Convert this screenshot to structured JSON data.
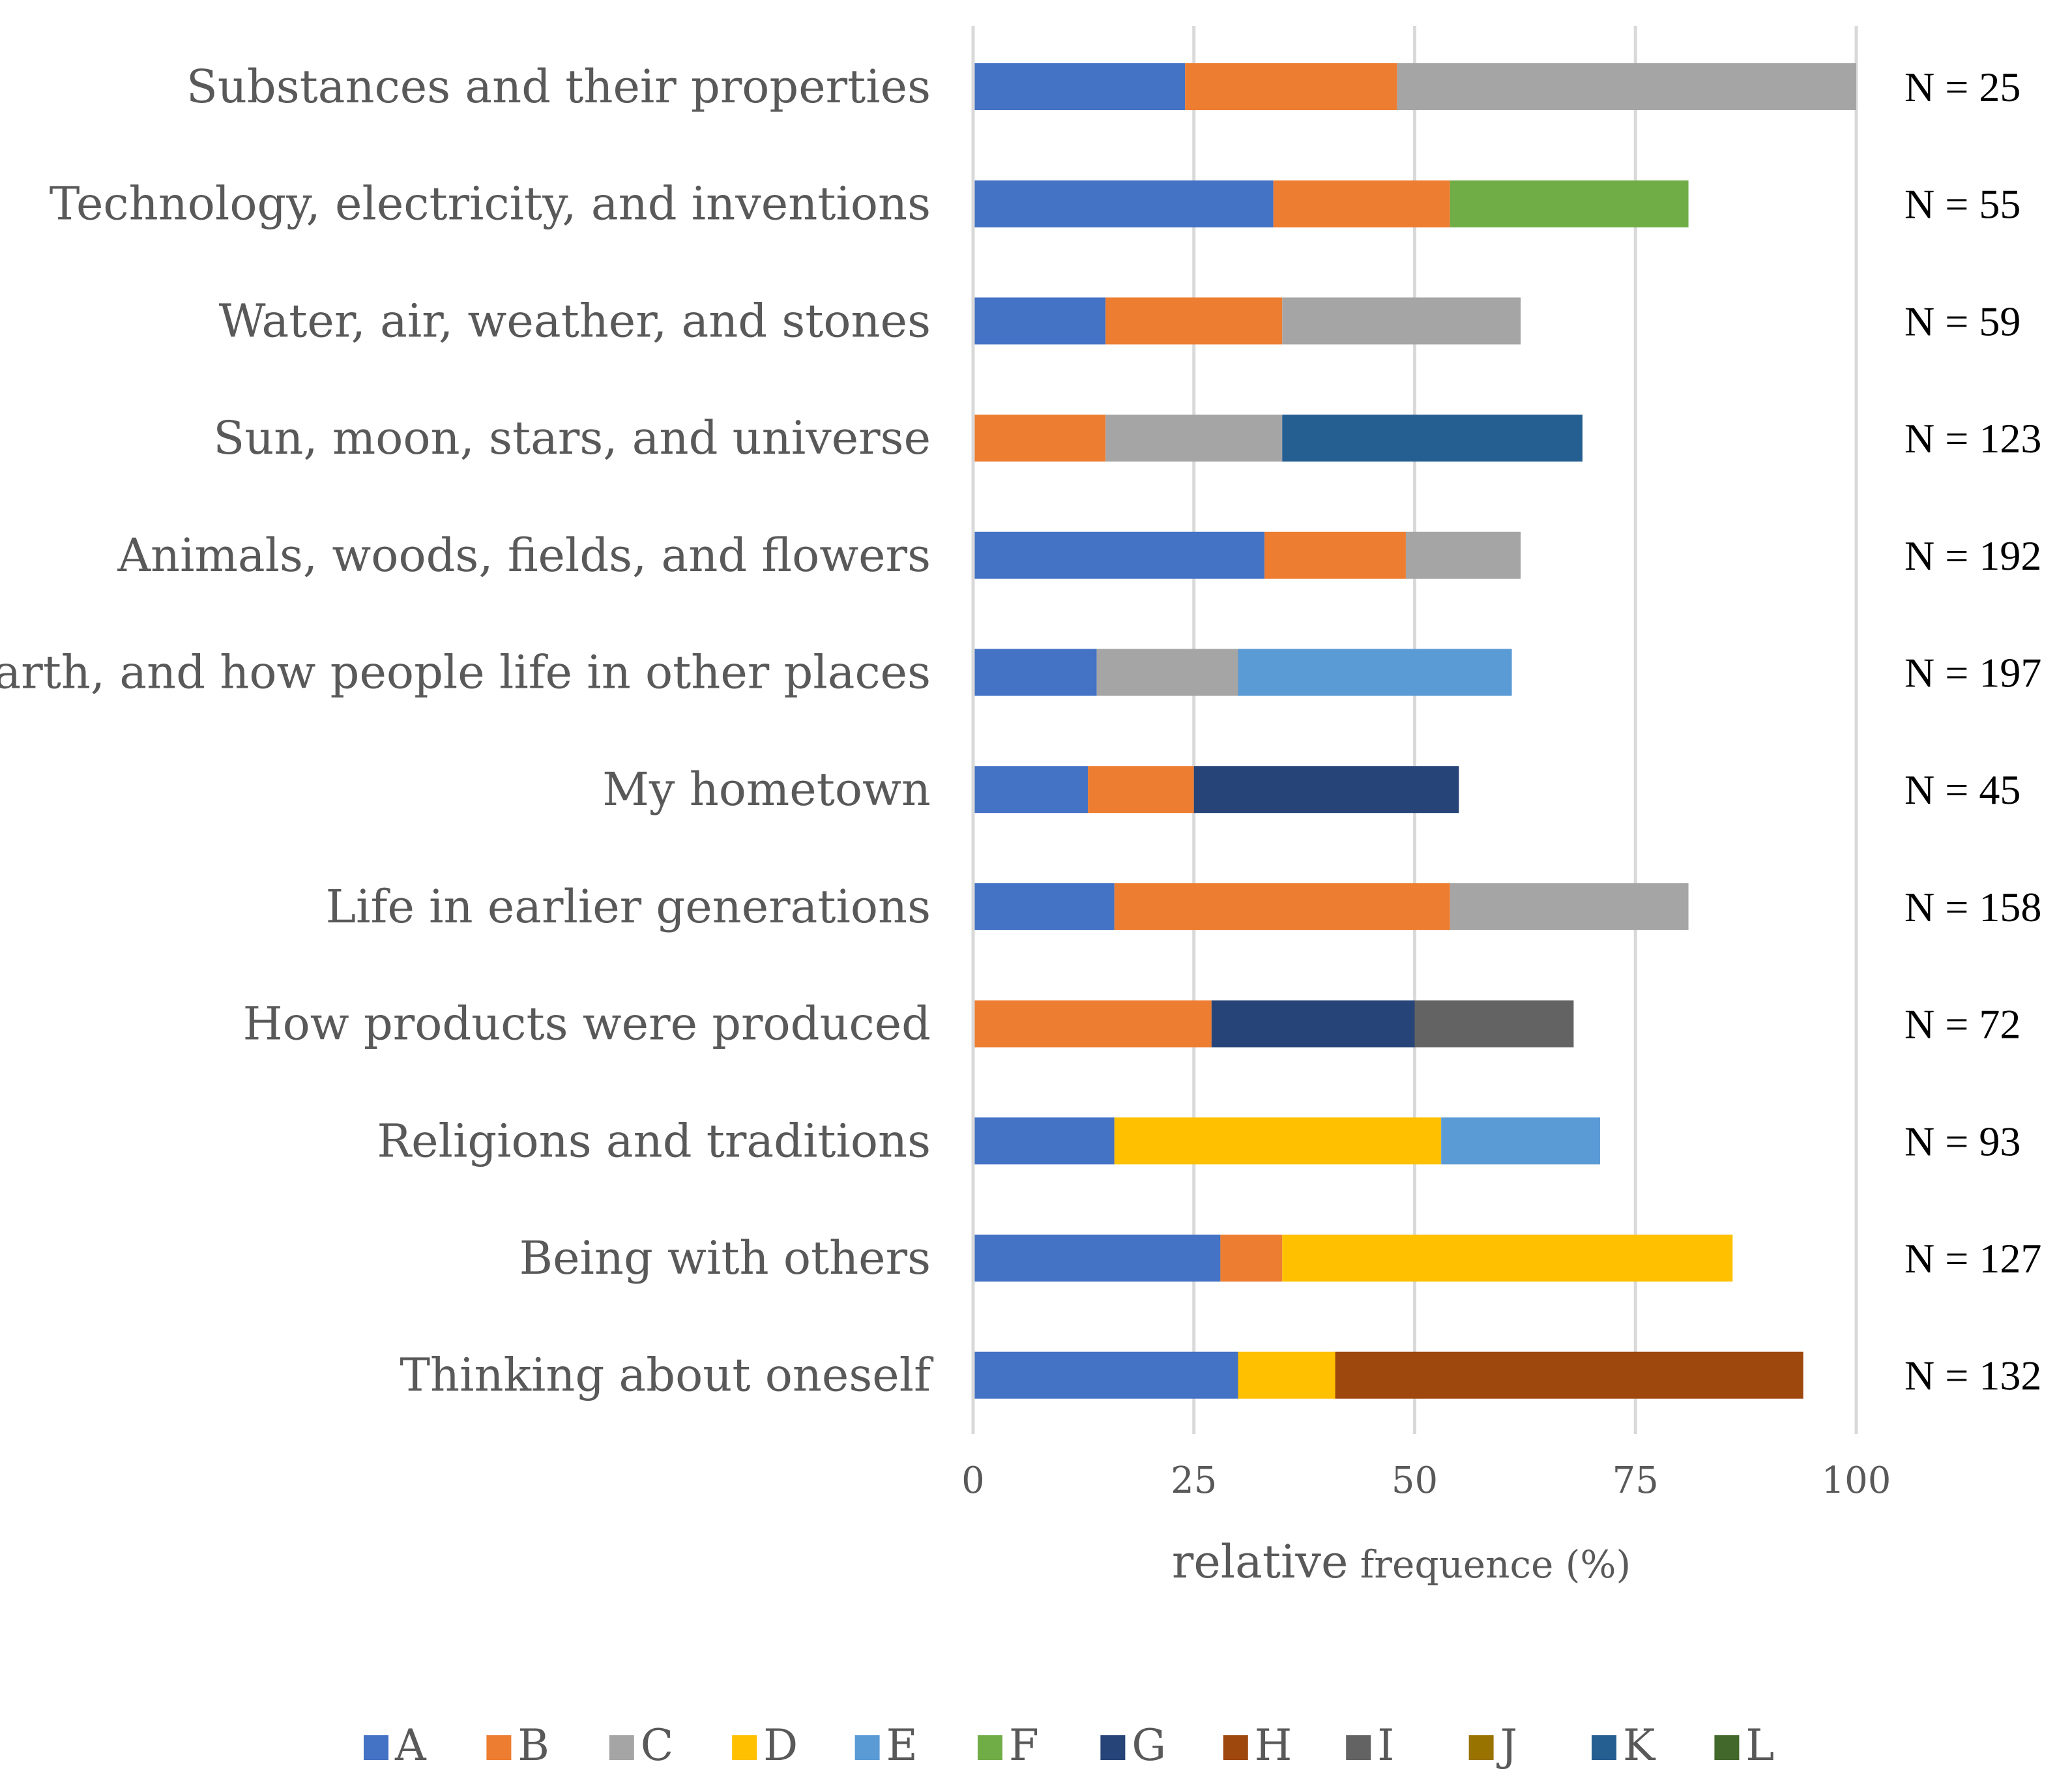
{
  "chart_data": {
    "type": "bar",
    "orientation": "horizontal",
    "stacked": true,
    "xlabel_main": "relative",
    "xlabel_rest": " frequence (%)",
    "xlim": [
      0,
      100
    ],
    "xticks": [
      "0",
      "25",
      "50",
      "75",
      "100"
    ],
    "grid": "vertical",
    "legend_position": "bottom",
    "categories": [
      "Substances and their properties",
      "Technology, electricity, and inventions",
      "Water, air, weather, and stones",
      "Sun, moon, stars, and universe",
      "Animals, woods, fields, and flowers",
      "Earth, and how people life in other places",
      "My hometown",
      "Life in earlier generations",
      "How products were produced",
      "Religions and traditions",
      "Being with others",
      "Thinking about oneself"
    ],
    "n_labels": [
      "N = 25",
      "N = 55",
      "N = 59",
      "N = 123",
      "N = 192",
      "N = 197",
      "N = 45",
      "N = 158",
      "N = 72",
      "N = 93",
      "N = 127",
      "N = 132"
    ],
    "series": [
      {
        "name": "A",
        "color": "#4472C4",
        "values": [
          24,
          34,
          15,
          0,
          33,
          14,
          13,
          16,
          0,
          16,
          28,
          30
        ]
      },
      {
        "name": "B",
        "color": "#ED7D31",
        "values": [
          24,
          20,
          20,
          15,
          16,
          0,
          12,
          38,
          27,
          0,
          7,
          0
        ]
      },
      {
        "name": "C",
        "color": "#A5A5A5",
        "values": [
          52,
          0,
          27,
          20,
          13,
          16,
          0,
          27,
          0,
          0,
          0,
          0
        ]
      },
      {
        "name": "D",
        "color": "#FFC000",
        "values": [
          0,
          0,
          0,
          0,
          0,
          0,
          0,
          0,
          0,
          37,
          51,
          11
        ]
      },
      {
        "name": "E",
        "color": "#5B9BD5",
        "values": [
          0,
          0,
          0,
          0,
          0,
          31,
          0,
          0,
          0,
          18,
          0,
          0
        ]
      },
      {
        "name": "F",
        "color": "#70AD47",
        "values": [
          0,
          27,
          0,
          0,
          0,
          0,
          0,
          0,
          0,
          0,
          0,
          0
        ]
      },
      {
        "name": "G",
        "color": "#264478",
        "values": [
          0,
          0,
          0,
          0,
          0,
          0,
          30,
          0,
          23,
          0,
          0,
          0
        ]
      },
      {
        "name": "H",
        "color": "#9E480E",
        "values": [
          0,
          0,
          0,
          0,
          0,
          0,
          0,
          0,
          0,
          0,
          0,
          53
        ]
      },
      {
        "name": "I",
        "color": "#636363",
        "values": [
          0,
          0,
          0,
          0,
          0,
          0,
          0,
          0,
          18,
          0,
          0,
          0
        ]
      },
      {
        "name": "J",
        "color": "#997300",
        "values": [
          0,
          0,
          0,
          0,
          0,
          0,
          0,
          0,
          0,
          0,
          0,
          0
        ]
      },
      {
        "name": "K",
        "color": "#255E91",
        "values": [
          0,
          0,
          0,
          34,
          0,
          0,
          0,
          0,
          0,
          0,
          0,
          0
        ]
      },
      {
        "name": "L",
        "color": "#43682B",
        "values": [
          0,
          0,
          0,
          0,
          0,
          0,
          0,
          0,
          0,
          0,
          0,
          0
        ]
      }
    ]
  }
}
